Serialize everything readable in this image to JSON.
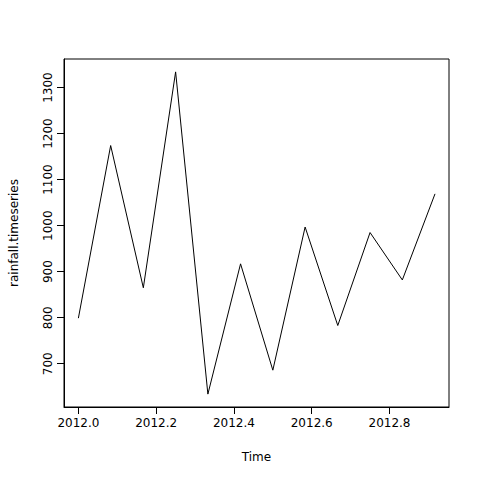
{
  "chart_data": {
    "type": "line",
    "x_label": "Time",
    "y_label": "rainfall.timeseries",
    "x": [
      2012,
      2012.083,
      2012.167,
      2012.25,
      2012.333,
      2012.417,
      2012.5,
      2012.583,
      2012.667,
      2012.75,
      2012.833,
      2012.917
    ],
    "values": [
      799,
      1174,
      865,
      1334,
      634,
      917,
      686,
      997,
      783,
      985,
      882,
      1069
    ],
    "color": "#000000",
    "xlim": [
      2011.963,
      2012.953
    ],
    "xticks": [
      {
        "value": 2012,
        "label": "2012.0"
      },
      2012.2,
      2012.4,
      2012.6,
      2012.8
    ],
    "ylim": [
      606,
      1362
    ],
    "yticks": [
      700,
      800,
      900,
      1000,
      1100,
      1200,
      1300
    ],
    "grid": false,
    "line_style": "solid"
  }
}
